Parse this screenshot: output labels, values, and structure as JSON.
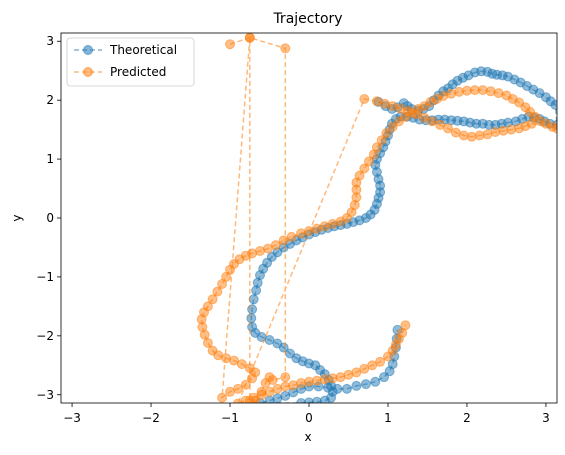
{
  "chart_data": {
    "type": "line",
    "title": "Trajectory",
    "xlabel": "x",
    "ylabel": "y",
    "xlim": [
      -3.14,
      3.14
    ],
    "ylim": [
      -3.14,
      3.14
    ],
    "x_ticks": [
      -3,
      -2,
      -1,
      0,
      1,
      2,
      3
    ],
    "y_ticks": [
      -3,
      -2,
      -1,
      0,
      1,
      2,
      3
    ],
    "grid": false,
    "legend_position": "top-left",
    "colors": {
      "theoretical": "#1f77b4",
      "predicted": "#ff7f0e"
    },
    "series": [
      {
        "name": "Theoretical",
        "style": "dashed-line-with-circles",
        "points": [
          [
            0.88,
            1.97
          ],
          [
            0.97,
            1.9
          ],
          [
            1.05,
            1.85
          ],
          [
            1.12,
            1.88
          ],
          [
            1.2,
            1.95
          ],
          [
            1.25,
            1.9
          ],
          [
            1.3,
            1.85
          ],
          [
            1.38,
            1.82
          ],
          [
            1.45,
            1.85
          ],
          [
            1.52,
            1.9
          ],
          [
            1.58,
            2.0
          ],
          [
            1.64,
            2.08
          ],
          [
            1.7,
            2.15
          ],
          [
            1.76,
            2.2
          ],
          [
            1.82,
            2.27
          ],
          [
            1.88,
            2.33
          ],
          [
            1.95,
            2.38
          ],
          [
            2.02,
            2.42
          ],
          [
            2.1,
            2.47
          ],
          [
            2.18,
            2.49
          ],
          [
            2.26,
            2.48
          ],
          [
            2.32,
            2.45
          ],
          [
            2.38,
            2.43
          ],
          [
            2.45,
            2.42
          ],
          [
            2.52,
            2.4
          ],
          [
            2.6,
            2.35
          ],
          [
            2.68,
            2.3
          ],
          [
            2.76,
            2.24
          ],
          [
            2.84,
            2.18
          ],
          [
            2.92,
            2.12
          ],
          [
            3.0,
            2.05
          ],
          [
            3.06,
            1.98
          ],
          [
            3.12,
            1.92
          ],
          [
            3.14,
            1.58
          ],
          [
            3.05,
            1.6
          ],
          [
            2.98,
            1.64
          ],
          [
            2.92,
            1.68
          ],
          [
            2.85,
            1.7
          ],
          [
            2.78,
            1.72
          ],
          [
            2.7,
            1.68
          ],
          [
            2.62,
            1.64
          ],
          [
            2.52,
            1.62
          ],
          [
            2.44,
            1.6
          ],
          [
            2.36,
            1.58
          ],
          [
            2.28,
            1.58
          ],
          [
            2.2,
            1.6
          ],
          [
            2.12,
            1.6
          ],
          [
            2.04,
            1.62
          ],
          [
            1.96,
            1.64
          ],
          [
            1.88,
            1.65
          ],
          [
            1.8,
            1.66
          ],
          [
            1.72,
            1.67
          ],
          [
            1.64,
            1.67
          ],
          [
            1.56,
            1.66
          ],
          [
            1.48,
            1.66
          ],
          [
            1.4,
            1.67
          ],
          [
            1.32,
            1.7
          ],
          [
            1.24,
            1.72
          ],
          [
            1.16,
            1.72
          ],
          [
            1.1,
            1.68
          ],
          [
            1.05,
            1.6
          ],
          [
            1.02,
            1.5
          ],
          [
            1.0,
            1.4
          ],
          [
            0.97,
            1.3
          ],
          [
            0.94,
            1.2
          ],
          [
            0.9,
            1.1
          ],
          [
            0.86,
            1.0
          ],
          [
            0.84,
            0.9
          ],
          [
            0.86,
            0.78
          ],
          [
            0.88,
            0.66
          ],
          [
            0.9,
            0.55
          ],
          [
            0.9,
            0.44
          ],
          [
            0.88,
            0.34
          ],
          [
            0.86,
            0.24
          ],
          [
            0.83,
            0.14
          ],
          [
            0.78,
            0.06
          ],
          [
            0.72,
            0.0
          ],
          [
            0.64,
            -0.04
          ],
          [
            0.56,
            -0.07
          ],
          [
            0.48,
            -0.1
          ],
          [
            0.4,
            -0.12
          ],
          [
            0.32,
            -0.14
          ],
          [
            0.24,
            -0.17
          ],
          [
            0.16,
            -0.2
          ],
          [
            0.08,
            -0.24
          ],
          [
            0.0,
            -0.28
          ],
          [
            -0.08,
            -0.33
          ],
          [
            -0.16,
            -0.38
          ],
          [
            -0.24,
            -0.44
          ],
          [
            -0.32,
            -0.5
          ],
          [
            -0.4,
            -0.58
          ],
          [
            -0.47,
            -0.66
          ],
          [
            -0.53,
            -0.76
          ],
          [
            -0.58,
            -0.86
          ],
          [
            -0.62,
            -0.97
          ],
          [
            -0.65,
            -1.1
          ],
          [
            -0.67,
            -1.23
          ],
          [
            -0.7,
            -1.38
          ],
          [
            -0.72,
            -1.55
          ],
          [
            -0.73,
            -1.7
          ],
          [
            -0.72,
            -1.85
          ],
          [
            -0.68,
            -1.95
          ],
          [
            -0.6,
            -2.02
          ],
          [
            -0.5,
            -2.07
          ],
          [
            -0.4,
            -2.13
          ],
          [
            -0.32,
            -2.2
          ],
          [
            -0.24,
            -2.3
          ],
          [
            -0.16,
            -2.38
          ],
          [
            -0.08,
            -2.43
          ],
          [
            0.0,
            -2.47
          ],
          [
            0.08,
            -2.5
          ],
          [
            0.14,
            -2.58
          ],
          [
            0.2,
            -2.65
          ],
          [
            0.25,
            -2.75
          ],
          [
            0.28,
            -2.85
          ],
          [
            0.3,
            -2.95
          ],
          [
            0.28,
            -3.05
          ],
          [
            0.2,
            -3.1
          ],
          [
            0.1,
            -3.12
          ],
          [
            0.0,
            -3.13
          ],
          [
            -0.1,
            -3.14
          ],
          [
            -0.62,
            -3.14
          ],
          [
            -0.5,
            -3.1
          ],
          [
            -0.4,
            -3.06
          ],
          [
            -0.3,
            -3.02
          ],
          [
            -0.2,
            -2.96
          ],
          [
            -0.1,
            -2.9
          ],
          [
            0.0,
            -2.86
          ],
          [
            0.12,
            -2.86
          ],
          [
            0.24,
            -2.88
          ],
          [
            0.36,
            -2.9
          ],
          [
            0.48,
            -2.9
          ],
          [
            0.6,
            -2.85
          ],
          [
            0.72,
            -2.82
          ],
          [
            0.84,
            -2.78
          ],
          [
            0.95,
            -2.7
          ],
          [
            1.02,
            -2.6
          ],
          [
            1.06,
            -2.48
          ],
          [
            1.08,
            -2.35
          ],
          [
            1.1,
            -2.2
          ],
          [
            1.11,
            -2.05
          ],
          [
            1.12,
            -1.9
          ]
        ]
      },
      {
        "name": "Predicted",
        "style": "dashed-line-with-circles",
        "points": [
          [
            -1.0,
            2.95
          ],
          [
            -0.75,
            3.06
          ],
          [
            -0.75,
            -3.1
          ],
          [
            -0.68,
            -3.1
          ],
          [
            -0.6,
            -2.95
          ],
          [
            -0.55,
            -2.8
          ],
          [
            -0.5,
            -2.7
          ],
          [
            -0.46,
            -2.75
          ],
          [
            -0.3,
            -2.7
          ],
          [
            -0.3,
            2.88
          ],
          [
            -0.75,
            3.06
          ],
          [
            -1.1,
            -3.05
          ],
          [
            -1.0,
            -2.95
          ],
          [
            -0.9,
            -2.9
          ],
          [
            -0.8,
            -2.83
          ],
          [
            -0.72,
            -2.72
          ],
          [
            -0.68,
            -2.62
          ],
          [
            -0.75,
            -2.55
          ],
          [
            -0.85,
            -2.48
          ],
          [
            -0.95,
            -2.42
          ],
          [
            -1.05,
            -2.38
          ],
          [
            -1.15,
            -2.33
          ],
          [
            -1.22,
            -2.25
          ],
          [
            -1.28,
            -2.12
          ],
          [
            -1.32,
            -1.98
          ],
          [
            -1.35,
            -1.85
          ],
          [
            -1.36,
            -1.72
          ],
          [
            -1.33,
            -1.6
          ],
          [
            -1.28,
            -1.5
          ],
          [
            -1.22,
            -1.38
          ],
          [
            -1.16,
            -1.25
          ],
          [
            -1.1,
            -1.12
          ],
          [
            -1.05,
            -1.0
          ],
          [
            -1.0,
            -0.88
          ],
          [
            -0.95,
            -0.78
          ],
          [
            -0.88,
            -0.7
          ],
          [
            -0.8,
            -0.64
          ],
          [
            -0.72,
            -0.6
          ],
          [
            -0.62,
            -0.56
          ],
          [
            -0.52,
            -0.52
          ],
          [
            -0.42,
            -0.46
          ],
          [
            -0.32,
            -0.38
          ],
          [
            -0.22,
            -0.32
          ],
          [
            -0.1,
            -0.26
          ],
          [
            0.0,
            -0.22
          ],
          [
            0.1,
            -0.18
          ],
          [
            0.2,
            -0.14
          ],
          [
            0.3,
            -0.1
          ],
          [
            0.4,
            -0.06
          ],
          [
            0.48,
            0.0
          ],
          [
            0.54,
            0.1
          ],
          [
            0.58,
            0.22
          ],
          [
            0.6,
            0.35
          ],
          [
            0.6,
            0.48
          ],
          [
            0.6,
            0.6
          ],
          [
            0.64,
            0.72
          ],
          [
            0.7,
            0.84
          ],
          [
            0.76,
            0.96
          ],
          [
            0.82,
            1.08
          ],
          [
            0.86,
            1.2
          ],
          [
            0.92,
            1.32
          ],
          [
            0.98,
            1.44
          ],
          [
            1.06,
            1.55
          ],
          [
            1.14,
            1.64
          ],
          [
            1.22,
            1.72
          ],
          [
            1.3,
            1.78
          ],
          [
            1.38,
            1.85
          ],
          [
            1.46,
            1.9
          ],
          [
            1.54,
            1.97
          ],
          [
            1.62,
            2.02
          ],
          [
            1.7,
            2.07
          ],
          [
            1.8,
            2.11
          ],
          [
            1.9,
            2.14
          ],
          [
            2.0,
            2.16
          ],
          [
            2.1,
            2.17
          ],
          [
            2.2,
            2.17
          ],
          [
            2.3,
            2.15
          ],
          [
            2.4,
            2.12
          ],
          [
            2.5,
            2.08
          ],
          [
            2.58,
            2.02
          ],
          [
            2.66,
            1.96
          ],
          [
            2.74,
            1.88
          ],
          [
            2.8,
            1.8
          ],
          [
            2.86,
            1.72
          ],
          [
            2.92,
            1.65
          ],
          [
            3.0,
            1.6
          ],
          [
            3.08,
            1.55
          ],
          [
            3.14,
            1.52
          ],
          [
            2.82,
            1.6
          ],
          [
            2.74,
            1.56
          ],
          [
            2.66,
            1.52
          ],
          [
            2.56,
            1.5
          ],
          [
            2.46,
            1.48
          ],
          [
            2.36,
            1.46
          ],
          [
            2.26,
            1.42
          ],
          [
            2.16,
            1.4
          ],
          [
            2.06,
            1.38
          ],
          [
            1.96,
            1.4
          ],
          [
            1.86,
            1.45
          ],
          [
            1.76,
            1.52
          ],
          [
            1.66,
            1.58
          ],
          [
            1.56,
            1.64
          ],
          [
            1.46,
            1.7
          ],
          [
            1.36,
            1.76
          ],
          [
            1.26,
            1.82
          ],
          [
            1.16,
            1.86
          ],
          [
            1.06,
            1.9
          ],
          [
            0.96,
            1.94
          ],
          [
            0.86,
            1.98
          ],
          [
            0.7,
            2.02
          ],
          [
            -0.9,
            -3.15
          ],
          [
            -0.8,
            -3.1
          ],
          [
            -0.7,
            -3.05
          ],
          [
            -0.6,
            -3.0
          ],
          [
            -0.5,
            -2.95
          ],
          [
            -0.4,
            -2.9
          ],
          [
            -0.3,
            -2.86
          ],
          [
            -0.2,
            -2.84
          ],
          [
            -0.1,
            -2.8
          ],
          [
            0.0,
            -2.78
          ],
          [
            0.1,
            -2.76
          ],
          [
            0.2,
            -2.74
          ],
          [
            0.3,
            -2.72
          ],
          [
            0.4,
            -2.7
          ],
          [
            0.5,
            -2.66
          ],
          [
            0.6,
            -2.62
          ],
          [
            0.7,
            -2.56
          ],
          [
            0.8,
            -2.5
          ],
          [
            0.9,
            -2.44
          ],
          [
            1.0,
            -2.35
          ],
          [
            1.06,
            -2.25
          ],
          [
            1.1,
            -2.15
          ],
          [
            1.14,
            -2.05
          ],
          [
            1.18,
            -1.95
          ],
          [
            1.22,
            -1.82
          ]
        ]
      }
    ]
  }
}
